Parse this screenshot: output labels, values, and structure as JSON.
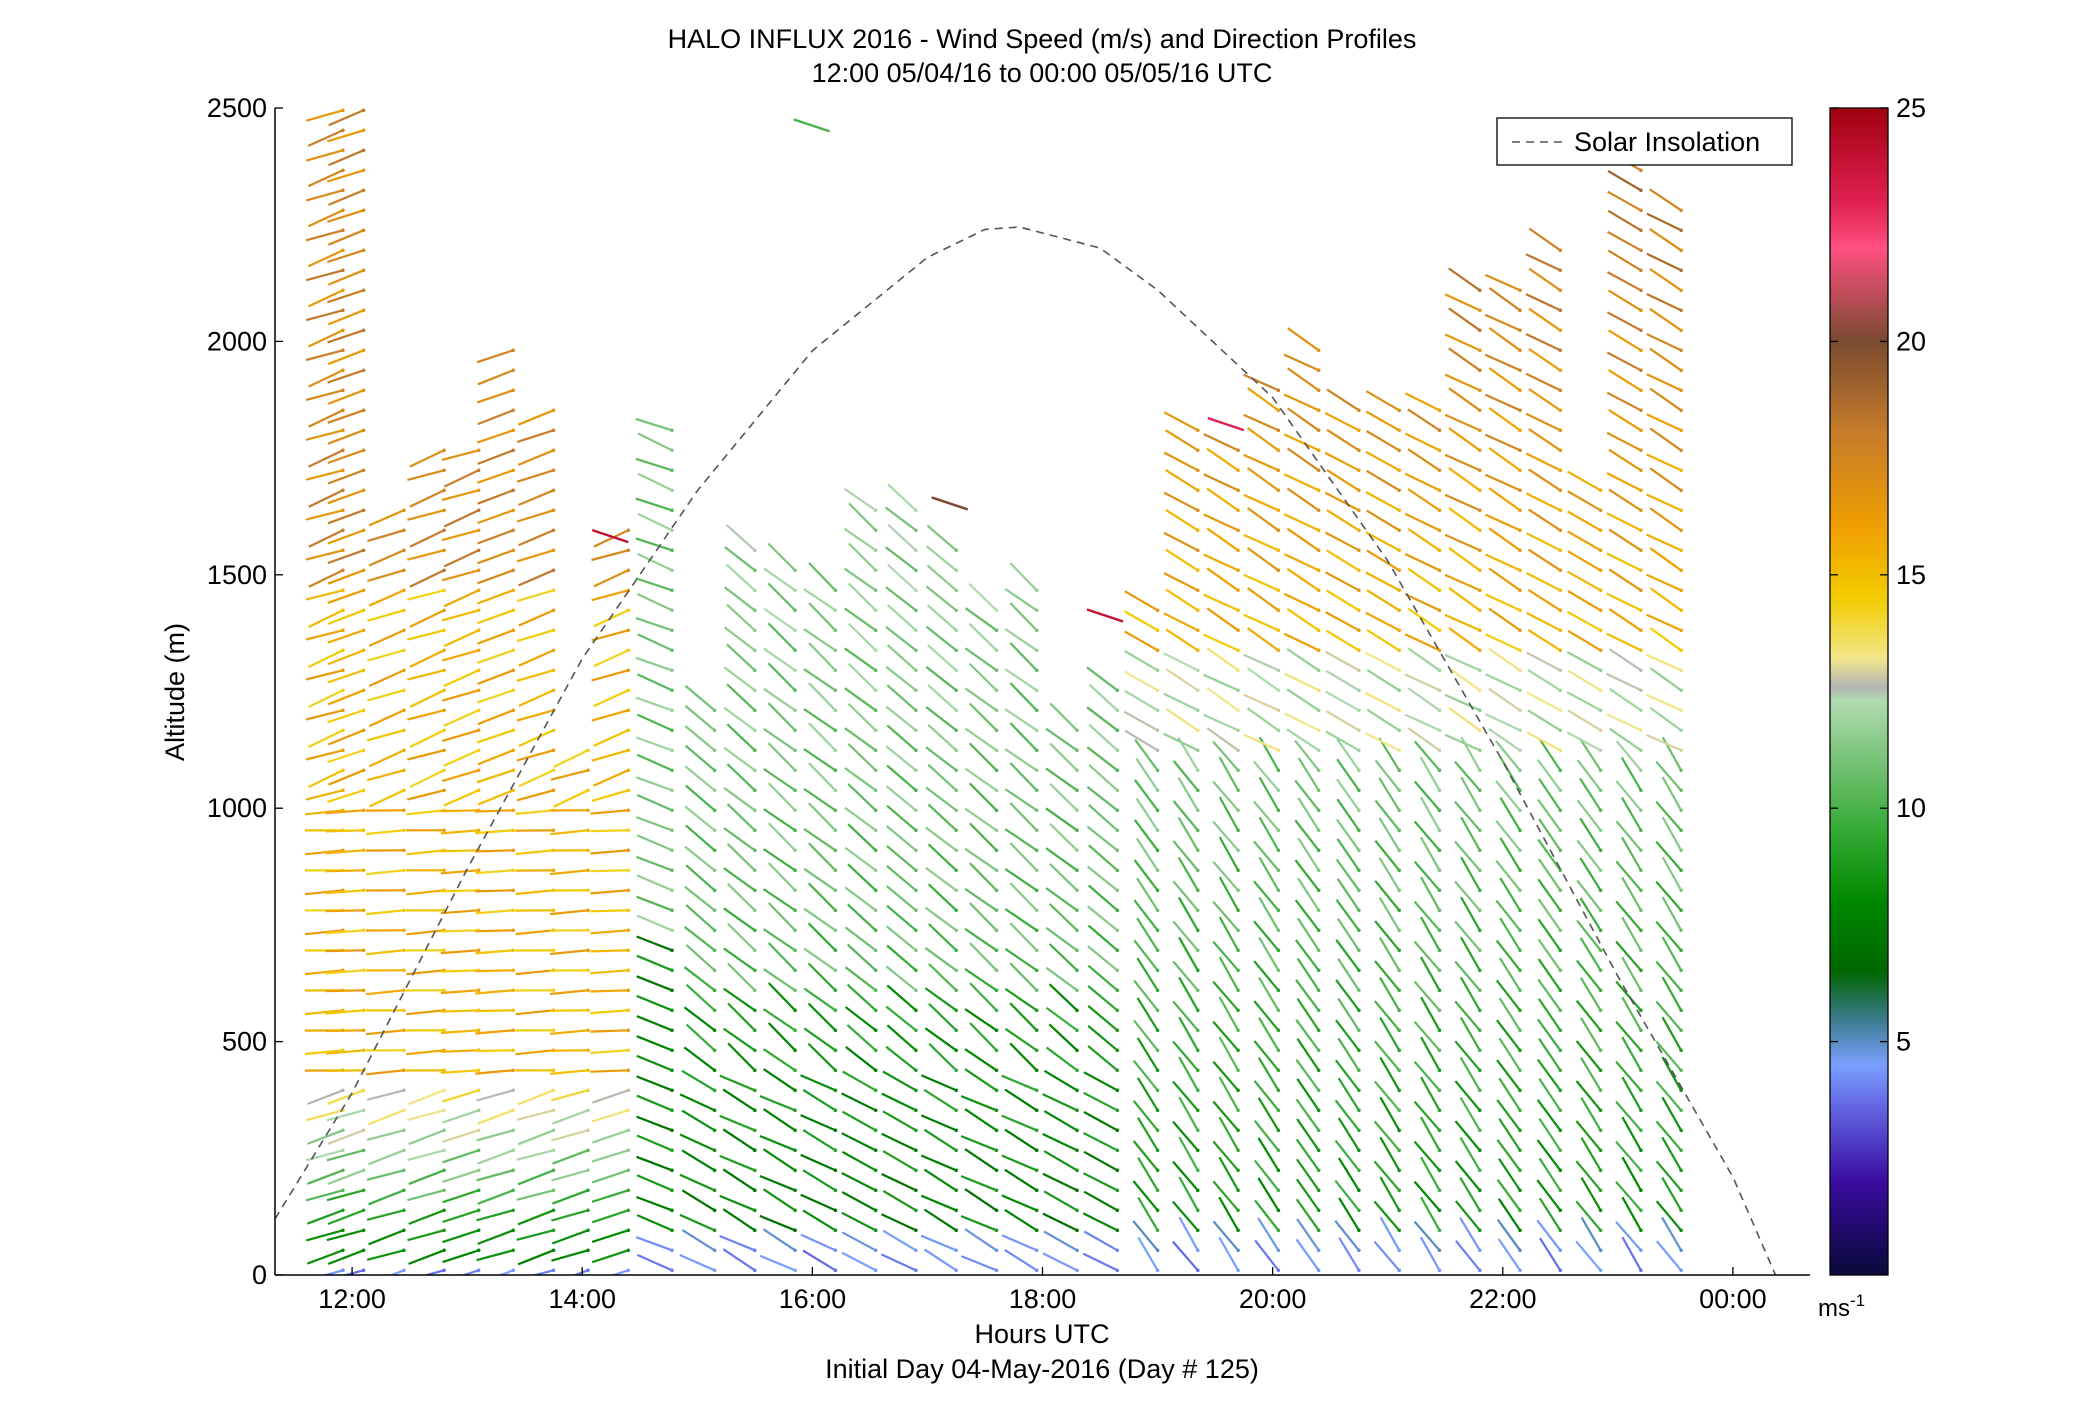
{
  "chart_data": {
    "type": "scatter",
    "title": "HALO INFLUX 2016 - Wind Speed (m/s) and Direction Profiles",
    "subtitle": "12:00 05/04/16 to 00:00 05/05/16  UTC",
    "xlabel": "Hours UTC",
    "xlabel2": "Initial Day 04-May-2016 (Day # 125)",
    "ylabel": "Altitude (m)",
    "xlim_hours": [
      11.33,
      24.67
    ],
    "ylim": [
      0,
      2500
    ],
    "x_ticks": [
      {
        "hour": 12,
        "label": "12:00"
      },
      {
        "hour": 14,
        "label": "14:00"
      },
      {
        "hour": 16,
        "label": "16:00"
      },
      {
        "hour": 18,
        "label": "18:00"
      },
      {
        "hour": 20,
        "label": "20:00"
      },
      {
        "hour": 22,
        "label": "22:00"
      },
      {
        "hour": 24,
        "label": "00:00"
      }
    ],
    "y_ticks": [
      {
        "value": 0,
        "label": "0"
      },
      {
        "value": 500,
        "label": "500"
      },
      {
        "value": 1000,
        "label": "1000"
      },
      {
        "value": 1500,
        "label": "1500"
      },
      {
        "value": 2000,
        "label": "2000"
      },
      {
        "value": 2500,
        "label": "2500"
      }
    ],
    "legend": {
      "position": "top-right",
      "entries": [
        "Solar Insolation"
      ]
    },
    "colorbar": {
      "range": [
        0,
        25
      ],
      "unit": "ms",
      "unit_exp": "-1",
      "ticks": [
        {
          "value": 5,
          "label": "5"
        },
        {
          "value": 10,
          "label": "10"
        },
        {
          "value": 15,
          "label": "15"
        },
        {
          "value": 20,
          "label": "20"
        },
        {
          "value": 25,
          "label": "25"
        }
      ],
      "stops": [
        {
          "v": 0,
          "c": "#0a0a3a"
        },
        {
          "v": 2,
          "c": "#3a0ca0"
        },
        {
          "v": 3.5,
          "c": "#6060e0"
        },
        {
          "v": 4.5,
          "c": "#7aa0ff"
        },
        {
          "v": 5.5,
          "c": "#3a7a8a"
        },
        {
          "v": 6.5,
          "c": "#006600"
        },
        {
          "v": 8,
          "c": "#008800"
        },
        {
          "v": 9.5,
          "c": "#33aa33"
        },
        {
          "v": 11,
          "c": "#77c277"
        },
        {
          "v": 12.3,
          "c": "#b0dbb0"
        },
        {
          "v": 12.6,
          "c": "#b4b4b4"
        },
        {
          "v": 13.2,
          "c": "#f2e68c"
        },
        {
          "v": 14.5,
          "c": "#f2cc00"
        },
        {
          "v": 16,
          "c": "#f0a000"
        },
        {
          "v": 18,
          "c": "#c87d2a"
        },
        {
          "v": 20,
          "c": "#7a4a30"
        },
        {
          "v": 22,
          "c": "#ff5080"
        },
        {
          "v": 23,
          "c": "#e02050"
        },
        {
          "v": 25,
          "c": "#a00010"
        }
      ]
    },
    "solar_insolation": {
      "x_hours": [
        11.33,
        12,
        13,
        14,
        15,
        16,
        17,
        17.5,
        17.8,
        18.5,
        19,
        20,
        21,
        22,
        23,
        24,
        24.37
      ],
      "y_altitude": [
        120,
        390,
        870,
        1320,
        1680,
        1980,
        2180,
        2240,
        2245,
        2200,
        2110,
        1880,
        1530,
        1100,
        640,
        210,
        0
      ]
    },
    "wind_profiles": [
      {
        "time": 11.92,
        "max_alt": 2500,
        "regime": "early"
      },
      {
        "time": 12.1,
        "max_alt": 2500,
        "regime": "early"
      },
      {
        "time": 12.45,
        "max_alt": 1680,
        "regime": "early"
      },
      {
        "time": 12.8,
        "max_alt": 1770,
        "regime": "early"
      },
      {
        "time": 13.1,
        "max_alt": 1790,
        "regime": "early"
      },
      {
        "time": 13.4,
        "max_alt": 2000,
        "regime": "early"
      },
      {
        "time": 13.75,
        "max_alt": 1870,
        "regime": "early"
      },
      {
        "time": 14.05,
        "max_alt": 1130,
        "regime": "early"
      },
      {
        "time": 14.4,
        "max_alt": 1620,
        "regime": "early"
      },
      {
        "time": 14.78,
        "max_alt": 1840,
        "regime": "transition"
      },
      {
        "time": 15.15,
        "max_alt": 1250,
        "regime": "day"
      },
      {
        "time": 15.5,
        "max_alt": 1580,
        "regime": "day"
      },
      {
        "time": 15.85,
        "max_alt": 1540,
        "regime": "day"
      },
      {
        "time": 16.2,
        "max_alt": 1500,
        "regime": "day"
      },
      {
        "time": 16.55,
        "max_alt": 1670,
        "regime": "day"
      },
      {
        "time": 16.9,
        "max_alt": 1650,
        "regime": "day"
      },
      {
        "time": 17.25,
        "max_alt": 1580,
        "regime": "day"
      },
      {
        "time": 17.6,
        "max_alt": 1460,
        "regime": "day"
      },
      {
        "time": 17.95,
        "max_alt": 1480,
        "regime": "day"
      },
      {
        "time": 18.3,
        "max_alt": 1200,
        "regime": "day"
      },
      {
        "time": 18.65,
        "max_alt": 1290,
        "regime": "day"
      },
      {
        "time": 19.0,
        "max_alt": 1440,
        "regime": "evening"
      },
      {
        "time": 19.35,
        "max_alt": 1820,
        "regime": "evening"
      },
      {
        "time": 19.7,
        "max_alt": 1800,
        "regime": "evening"
      },
      {
        "time": 20.05,
        "max_alt": 1900,
        "regime": "evening"
      },
      {
        "time": 20.4,
        "max_alt": 2020,
        "regime": "evening"
      },
      {
        "time": 20.75,
        "max_alt": 1860,
        "regime": "evening"
      },
      {
        "time": 21.1,
        "max_alt": 1860,
        "regime": "evening"
      },
      {
        "time": 21.45,
        "max_alt": 1870,
        "regime": "evening"
      },
      {
        "time": 21.8,
        "max_alt": 2110,
        "regime": "evening"
      },
      {
        "time": 22.15,
        "max_alt": 2150,
        "regime": "evening"
      },
      {
        "time": 22.5,
        "max_alt": 2210,
        "regime": "evening"
      },
      {
        "time": 22.85,
        "max_alt": 1700,
        "regime": "evening"
      },
      {
        "time": 23.2,
        "max_alt": 2400,
        "regime": "evening"
      },
      {
        "time": 23.55,
        "max_alt": 2300,
        "regime": "evening"
      }
    ],
    "isolated_barbs": [
      {
        "time": 16.15,
        "altitude": 2450,
        "speed": 10
      },
      {
        "time": 17.35,
        "altitude": 1640,
        "speed": 20
      },
      {
        "time": 18.7,
        "altitude": 1400,
        "speed": 24
      },
      {
        "time": 19.75,
        "altitude": 1810,
        "speed": 23
      },
      {
        "time": 14.4,
        "altitude": 1570,
        "speed": 24
      }
    ]
  }
}
